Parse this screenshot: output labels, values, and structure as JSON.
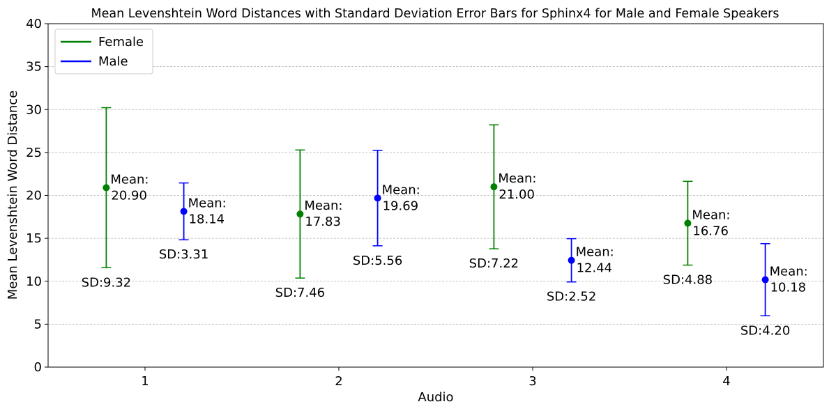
{
  "chart_data": {
    "type": "scatter",
    "title": "Mean Levenshtein Word Distances with Standard Deviation Error Bars for Sphinx4 for Male and Female Speakers",
    "xlabel": "Audio",
    "ylabel": "Mean Levenshtein Word Distance",
    "xlim": [
      0.5,
      4.5
    ],
    "ylim": [
      0,
      40
    ],
    "x_ticks": [
      1,
      2,
      3,
      4
    ],
    "y_ticks": [
      0,
      5,
      10,
      15,
      20,
      25,
      30,
      35,
      40
    ],
    "grid": "y-dashed",
    "legend_position": "top-left",
    "series": [
      {
        "name": "Female",
        "color": "#008000",
        "x": [
          0.8,
          1.8,
          2.8,
          3.8
        ],
        "mean": [
          20.9,
          17.83,
          21.0,
          16.76
        ],
        "sd": [
          9.32,
          7.46,
          7.22,
          4.88
        ],
        "mean_labels": [
          "20.90",
          "17.83",
          "21.00",
          "16.76"
        ],
        "sd_labels": [
          "SD:9.32",
          "SD:7.46",
          "SD:7.22",
          "SD:4.88"
        ]
      },
      {
        "name": "Male",
        "color": "#0000ff",
        "x": [
          1.2,
          2.2,
          3.2,
          4.2
        ],
        "mean": [
          18.14,
          19.69,
          12.44,
          10.18
        ],
        "sd": [
          3.31,
          5.56,
          2.52,
          4.2
        ],
        "mean_labels": [
          "18.14",
          "19.69",
          "12.44",
          "10.18"
        ],
        "sd_labels": [
          "SD:3.31",
          "SD:5.56",
          "SD:2.52",
          "SD:4.20"
        ]
      }
    ],
    "mean_prefix": "Mean:"
  }
}
